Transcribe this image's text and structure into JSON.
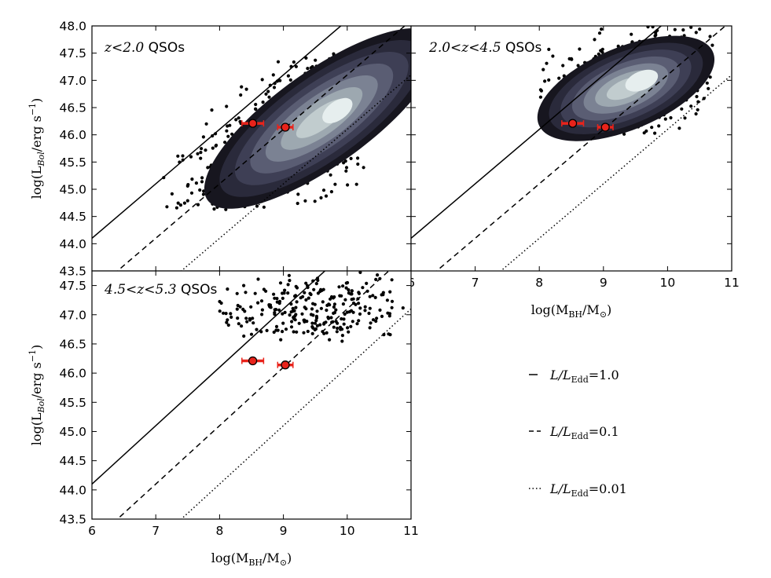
{
  "chart_data": [
    {
      "type": "scatter",
      "panel_label": "z<2.0 QSOs",
      "label_math": "z<2.0",
      "label_text": "QSOs",
      "xlim": [
        6,
        11
      ],
      "ylim": [
        43.5,
        48.0
      ],
      "ylabel": "log(L_Bol/erg s^-1)",
      "yticks": [
        "43.5",
        "44.0",
        "44.5",
        "45.0",
        "45.5",
        "46.0",
        "46.5",
        "47.0",
        "47.5",
        "48.0"
      ],
      "xticks": [],
      "density": {
        "center": [
          9.6,
          46.3
        ],
        "sx": 0.8,
        "sy": 0.72,
        "rho": 0.78,
        "scatter_count": 900,
        "levels": 7,
        "xmin": 7.0,
        "xmax": 10.3,
        "ymin": 44.6,
        "ymax": 47.5
      },
      "reference_lines": [
        {
          "style": "solid",
          "eddington_ratio": 1.0
        },
        {
          "style": "dashed",
          "eddington_ratio": 0.1
        },
        {
          "style": "dotted",
          "eddington_ratio": 0.01
        }
      ]
    },
    {
      "type": "scatter",
      "panel_label": "2.0<z<4.5 QSOs",
      "label_math": "2.0<z<4.5",
      "label_text": "QSOs",
      "xlim": [
        6,
        11
      ],
      "ylim": [
        43.5,
        48.0
      ],
      "xlabel": "log(M_BH/M_sun)",
      "xticks": [
        "6",
        "7",
        "8",
        "9",
        "10",
        "11"
      ],
      "yticks": [],
      "density": {
        "center": [
          9.35,
          46.85
        ],
        "sx": 0.6,
        "sy": 0.42,
        "rho": 0.55,
        "scatter_count": 700,
        "levels": 7,
        "xmin": 8.0,
        "xmax": 10.7,
        "ymin": 46.0,
        "ymax": 48.0
      },
      "reference_lines": [
        {
          "style": "solid",
          "eddington_ratio": 1.0
        },
        {
          "style": "dashed",
          "eddington_ratio": 0.1
        },
        {
          "style": "dotted",
          "eddington_ratio": 0.01
        }
      ]
    },
    {
      "type": "scatter",
      "panel_label": "4.5<z<5.3 QSOs",
      "label_math": "4.5<z<5.3",
      "label_text": "QSOs",
      "xlim": [
        6,
        11
      ],
      "ylim": [
        43.5,
        47.75
      ],
      "xlabel": "log(M_BH/M_sun)",
      "ylabel": "log(L_Bol/erg s^-1)",
      "xticks": [
        "6",
        "7",
        "8",
        "9",
        "10",
        "11"
      ],
      "yticks": [
        "43.5",
        "44.0",
        "44.5",
        "45.0",
        "45.5",
        "46.0",
        "46.5",
        "47.0",
        "47.5"
      ],
      "density": {
        "center": [
          9.4,
          47.1
        ],
        "sx": 0.55,
        "sy": 0.25,
        "rho": 0.2,
        "scatter_count": 260,
        "levels": 0,
        "xmin": 8.0,
        "xmax": 10.9,
        "ymin": 46.5,
        "ymax": 47.75
      },
      "reference_lines": [
        {
          "style": "solid",
          "eddington_ratio": 1.0
        },
        {
          "style": "dashed",
          "eddington_ratio": 0.1
        },
        {
          "style": "dotted",
          "eddington_ratio": 0.01
        }
      ]
    }
  ],
  "highlight_points": [
    {
      "x": 8.52,
      "y": 46.21,
      "xerr": 0.17,
      "yerr": 0.03
    },
    {
      "x": 9.03,
      "y": 46.14,
      "xerr": 0.12,
      "yerr": 0.03
    }
  ],
  "eddington_line": {
    "slope": 1.0,
    "intercept_at_x6": 44.1
  },
  "legend": [
    {
      "style": "solid",
      "text": "L/L_Edd=1.0",
      "main": "L/L",
      "sub": "Edd",
      "value": "=1.0"
    },
    {
      "style": "dashed",
      "text": "L/L_Edd=0.1",
      "main": "L/L",
      "sub": "Edd",
      "value": "=0.1"
    },
    {
      "style": "dotted",
      "text": "L/L_Edd=0.01",
      "main": "L/L",
      "sub": "Edd",
      "value": "=0.01"
    }
  ],
  "axis_text": {
    "ylabel_main": "log(L",
    "ylabel_sub": "Bol",
    "ylabel_rest": "/erg s",
    "ylabel_sup": "−1",
    "ylabel_end": ")",
    "xlabel_main": "log(M",
    "xlabel_sub": "BH",
    "xlabel_rest": "/M",
    "xlabel_sub2": "⊙",
    "xlabel_end": ")"
  },
  "colors": {
    "dots": "#000000",
    "highlight_fill": "#e8231b",
    "highlight_err": "#e8231b",
    "density_levels": [
      "#17161f",
      "#2a2a3b",
      "#3e3f55",
      "#5a5d73",
      "#7b8293",
      "#9da8b0",
      "#c1ccce",
      "#e6eeee"
    ]
  }
}
